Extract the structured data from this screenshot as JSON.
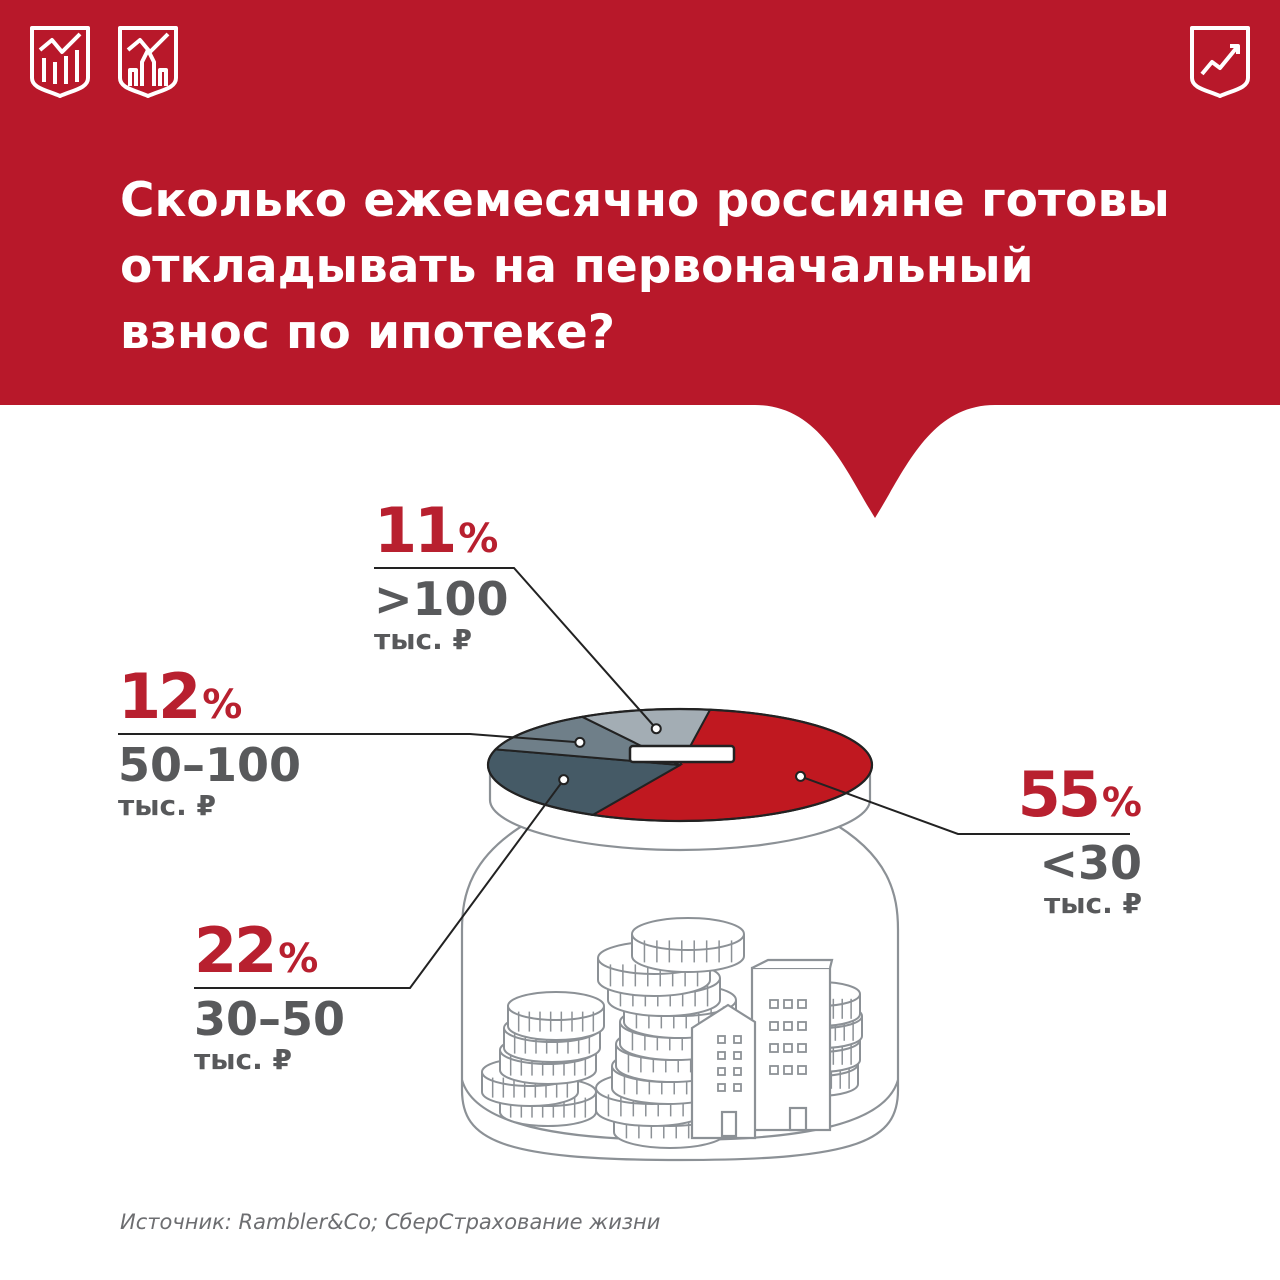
{
  "title_lines": [
    "Сколько ежемесячно россияне готовы",
    "откладывать на первоначальный",
    "взнос по ипотеке?"
  ],
  "source": "Источник: Rambler&Co; СберСтрахование жизни",
  "logos": [
    "report-chart-emblem-icon",
    "city-chart-emblem-icon",
    "growth-chart-emblem-icon"
  ],
  "colors": {
    "brand_red": "#b8182a",
    "slice_lt30": "#c01820",
    "slice_30_50": "#455a66",
    "slice_50_100": "#6f7f89",
    "slice_gt100": "#a3adb4",
    "pct_text": "#b8202f",
    "range_text": "#58595b"
  },
  "chart_data": {
    "type": "pie",
    "title": "",
    "slices": [
      {
        "label": "<30",
        "unit": "тыс. ₽",
        "value": 55,
        "pct_label": "55",
        "pct_symbol": "%"
      },
      {
        "label": "30–50",
        "unit": "тыс. ₽",
        "value": 22,
        "pct_label": "22",
        "pct_symbol": "%"
      },
      {
        "label": "50–100",
        "unit": "тыс. ₽",
        "value": 12,
        "pct_label": "12",
        "pct_symbol": "%"
      },
      {
        "label": ">100",
        "unit": "тыс. ₽",
        "value": 11,
        "pct_label": "11",
        "pct_symbol": "%"
      }
    ]
  }
}
